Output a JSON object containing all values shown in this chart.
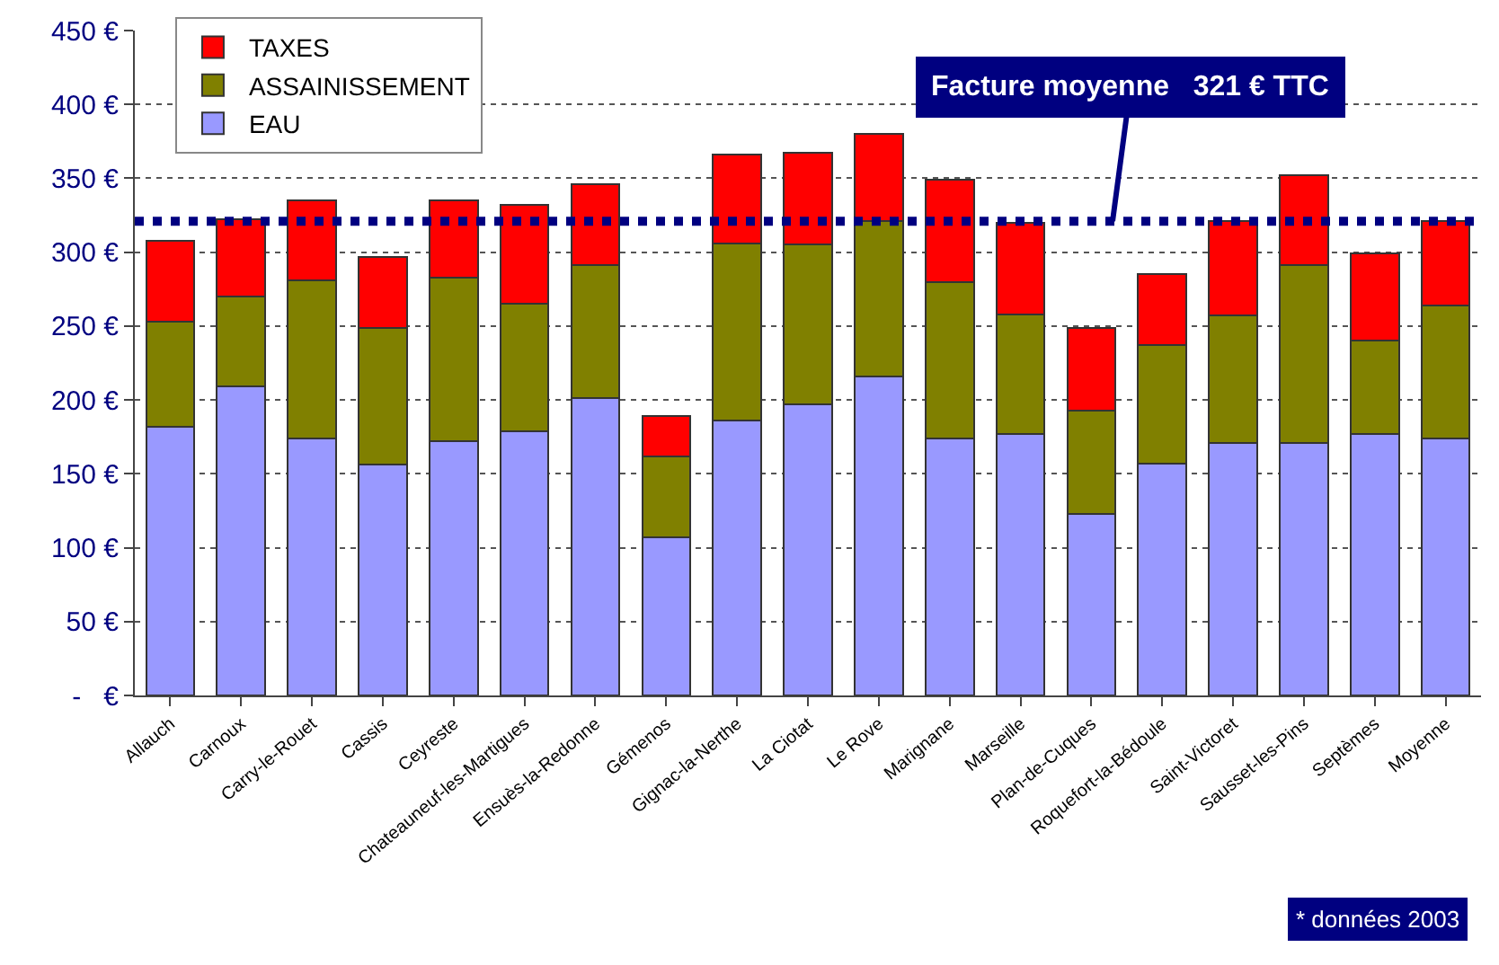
{
  "chart_data": {
    "type": "bar",
    "stacked": true,
    "categories": [
      "Allauch",
      "Carnoux",
      "Carry-le-Rouet",
      "Cassis",
      "Ceyreste",
      "Chateauneuf-les-Martigues",
      "Ensuès-la-Redonne",
      "Gémenos",
      "Gignac-la-Nerthe",
      "La Ciotat",
      "Le Rove",
      "Marignane",
      "Marseille",
      "Plan-de-Cuques",
      "Roquefort-la-Bédoule",
      "Saint-Victoret",
      "Sausset-les-Pins",
      "Septèmes",
      "Moyenne"
    ],
    "series": [
      {
        "name": "EAU",
        "color": "#9999ff",
        "values": [
          182,
          209,
          174,
          156,
          172,
          179,
          201,
          107,
          186,
          197,
          216,
          174,
          177,
          123,
          157,
          171,
          171,
          177,
          174
        ]
      },
      {
        "name": "ASSAINISSEMENT",
        "color": "#808000",
        "values": [
          71,
          61,
          107,
          93,
          111,
          86,
          90,
          55,
          120,
          108,
          105,
          106,
          81,
          70,
          80,
          86,
          120,
          63,
          90
        ]
      },
      {
        "name": "TAXES",
        "color": "#ff0000",
        "values": [
          55,
          52,
          54,
          48,
          52,
          67,
          55,
          27,
          60,
          62,
          59,
          69,
          62,
          56,
          48,
          64,
          61,
          59,
          57
        ]
      }
    ],
    "ylim": [
      0,
      450
    ],
    "yticks": [
      {
        "value": 0,
        "label": "-   €"
      },
      {
        "value": 50,
        "label": "50 €"
      },
      {
        "value": 100,
        "label": "100 €"
      },
      {
        "value": 150,
        "label": "150 €"
      },
      {
        "value": 200,
        "label": "200 €"
      },
      {
        "value": 250,
        "label": "250 €"
      },
      {
        "value": 300,
        "label": "300 €"
      },
      {
        "value": 350,
        "label": "350 €"
      },
      {
        "value": 400,
        "label": "400 €"
      },
      {
        "value": 450,
        "label": "450 €"
      }
    ],
    "grid": "y",
    "legend": "top left",
    "ref_lines": [
      {
        "axis": "y",
        "value": 321,
        "label": "Facture moyenne   321 € TTC",
        "color": "#000080",
        "line_style": "dotted"
      }
    ],
    "annotations": [
      "* données 2003"
    ]
  }
}
